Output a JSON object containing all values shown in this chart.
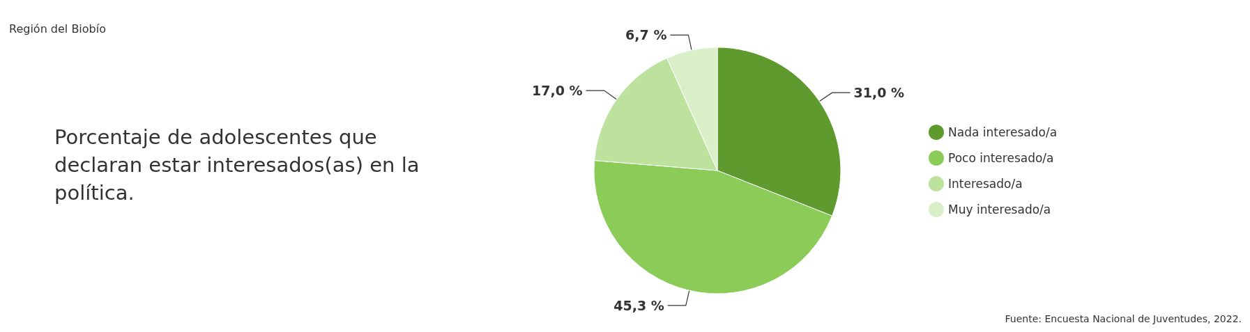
{
  "chart_data": {
    "type": "pie",
    "title": "Porcentaje de adolescentes que declaran estar interesados(as) en la política.",
    "subtitle": "Región del Biobío",
    "categories": [
      "Nada interesado/a",
      "Poco interesado/a",
      "Interesado/a",
      "Muy interesado/a"
    ],
    "values": [
      31.0,
      45.3,
      17.0,
      6.7
    ],
    "value_labels": [
      "31,0 %",
      "45,3 %",
      "17,0 %",
      "6,7 %"
    ],
    "colors": [
      "#5e9a2e",
      "#8bcb57",
      "#bde29e",
      "#d8efc8"
    ],
    "legend": "right",
    "annotations": [
      "Fuente: Encuesta Nacional de Juventudes, 2022."
    ]
  }
}
